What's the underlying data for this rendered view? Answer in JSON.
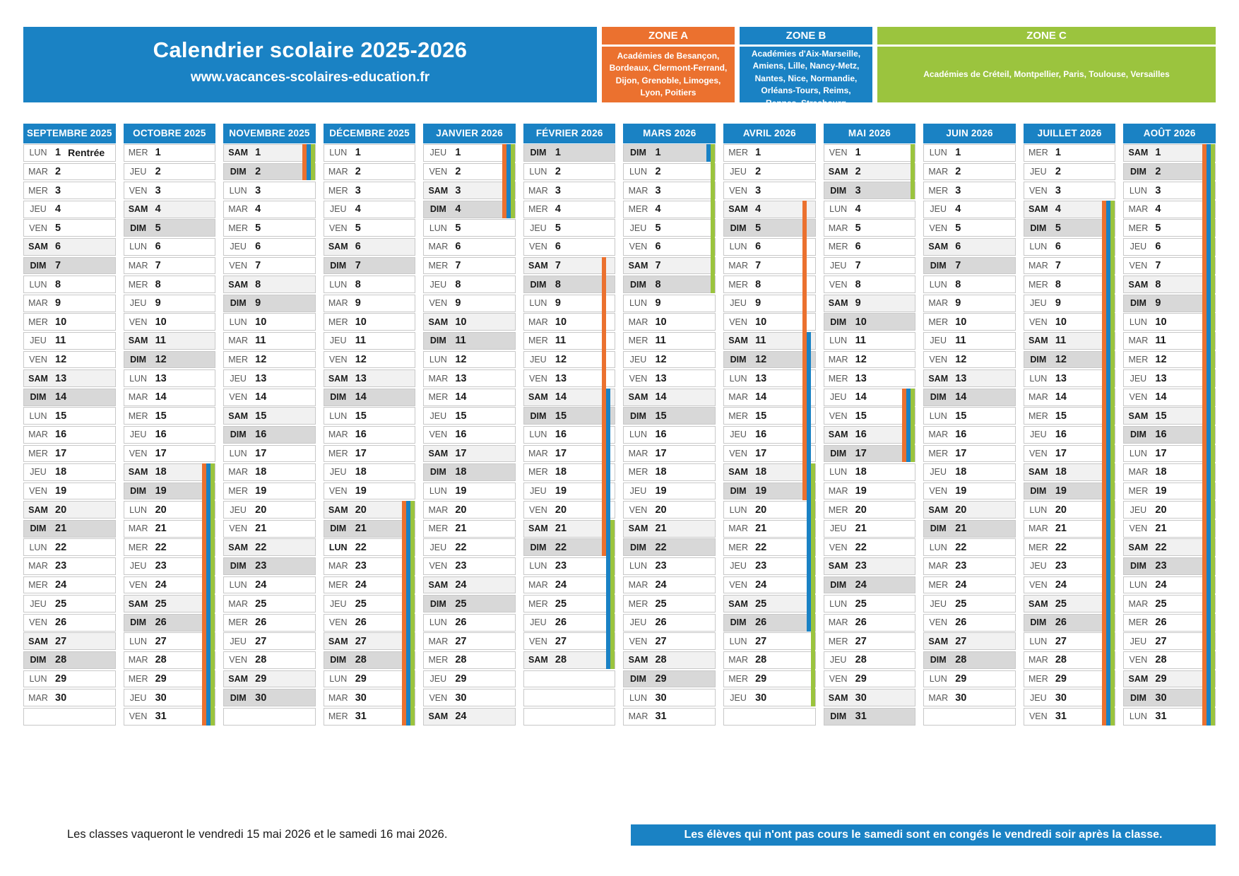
{
  "header": {
    "title": "Calendrier scolaire 2025-2026",
    "subtitle": "www.vacances-scolaires-education.fr"
  },
  "zones": [
    {
      "id": "A",
      "label": "ZONE A",
      "color": "#eb712f",
      "academies": "Académies de Besançon, Bordeaux, Clermont-Ferrand, Dijon, Grenoble, Limoges, Lyon, Poitiers"
    },
    {
      "id": "B",
      "label": "ZONE B",
      "color": "#1a82c4",
      "academies": "Académies d'Aix-Marseille, Amiens, Lille, Nancy-Metz, Nantes, Nice, Normandie, Orléans-Tours, Reims, Rennes, Strasbourg"
    },
    {
      "id": "C",
      "label": "ZONE C",
      "color": "#9bc43e",
      "academies": "Académies de Créteil, Montpellier, Paris, Toulouse, Versailles"
    }
  ],
  "colors": {
    "blue": "#1a82c4",
    "orange": "#eb712f",
    "green": "#9bc43e",
    "saturday_bg": "#f1f1f1",
    "sunday_bg": "#d8d8d8",
    "row_border": "#c8c8c8",
    "weekday_gray": "#595959"
  },
  "weekdays": [
    "LUN",
    "MAR",
    "MER",
    "JEU",
    "VEN",
    "SAM",
    "DIM"
  ],
  "months": [
    {
      "name": "SEPTEMBRE 2025",
      "first": "LUN",
      "days": 30,
      "notes": {
        "1": "Rentrée"
      },
      "stripes": []
    },
    {
      "name": "OCTOBRE 2025",
      "first": "MER",
      "days": 31,
      "stripes": [
        {
          "z": "A",
          "f": 18,
          "t": 31
        },
        {
          "z": "B",
          "f": 18,
          "t": 31
        },
        {
          "z": "C",
          "f": 18,
          "t": 31
        }
      ]
    },
    {
      "name": "NOVEMBRE 2025",
      "first": "SAM",
      "days": 30,
      "stripes": [
        {
          "z": "A",
          "f": 1,
          "t": 2
        },
        {
          "z": "B",
          "f": 1,
          "t": 2
        },
        {
          "z": "C",
          "f": 1,
          "t": 2
        }
      ]
    },
    {
      "name": "DÉCEMBRE 2025",
      "first": "LUN",
      "days": 31,
      "bold_days": [
        22
      ],
      "stripes": [
        {
          "z": "A",
          "f": 20,
          "t": 31
        },
        {
          "z": "B",
          "f": 20,
          "t": 31
        },
        {
          "z": "C",
          "f": 20,
          "t": 31
        }
      ]
    },
    {
      "name": "JANVIER 2026",
      "first": "JEU",
      "days": 31,
      "overrides": {
        "31": "24"
      },
      "stripes": [
        {
          "z": "A",
          "f": 1,
          "t": 4
        },
        {
          "z": "B",
          "f": 1,
          "t": 4
        },
        {
          "z": "C",
          "f": 1,
          "t": 4
        }
      ]
    },
    {
      "name": "FÉVRIER 2026",
      "first": "DIM",
      "days": 28,
      "stripes": [
        {
          "z": "A",
          "f": 7,
          "t": 22
        },
        {
          "z": "B",
          "f": 14,
          "t": 28
        },
        {
          "z": "C",
          "f": 21,
          "t": 28
        }
      ]
    },
    {
      "name": "MARS 2026",
      "first": "DIM",
      "days": 31,
      "stripes": [
        {
          "z": "B",
          "f": 1,
          "t": 1
        },
        {
          "z": "C",
          "f": 1,
          "t": 8
        }
      ]
    },
    {
      "name": "AVRIL 2026",
      "first": "MER",
      "days": 30,
      "stripes": [
        {
          "z": "A",
          "f": 4,
          "t": 19
        },
        {
          "z": "B",
          "f": 11,
          "t": 26
        },
        {
          "z": "C",
          "f": 18,
          "t": 30
        }
      ]
    },
    {
      "name": "MAI 2026",
      "first": "VEN",
      "days": 31,
      "stripes": [
        {
          "z": "C",
          "f": 1,
          "t": 3
        },
        {
          "z": "A",
          "f": 14,
          "t": 17
        },
        {
          "z": "B",
          "f": 14,
          "t": 17
        },
        {
          "z": "C",
          "f": 14,
          "t": 17
        }
      ]
    },
    {
      "name": "JUIN 2026",
      "first": "LUN",
      "days": 30,
      "stripes": []
    },
    {
      "name": "JUILLET 2026",
      "first": "MER",
      "days": 31,
      "stripes": [
        {
          "z": "A",
          "f": 4,
          "t": 31
        },
        {
          "z": "B",
          "f": 4,
          "t": 31
        },
        {
          "z": "C",
          "f": 4,
          "t": 31
        }
      ]
    },
    {
      "name": "AOÛT 2026",
      "first": "SAM",
      "days": 31,
      "stripes": [
        {
          "z": "A",
          "f": 1,
          "t": 31
        },
        {
          "z": "B",
          "f": 1,
          "t": 31
        },
        {
          "z": "C",
          "f": 1,
          "t": 31
        }
      ]
    }
  ],
  "footer": {
    "note": "Les classes vaqueront le vendredi 15 mai 2026 et le samedi 16 mai 2026.",
    "banner": "Les élèves qui n'ont pas cours le samedi sont en congés le vendredi soir après la classe."
  }
}
